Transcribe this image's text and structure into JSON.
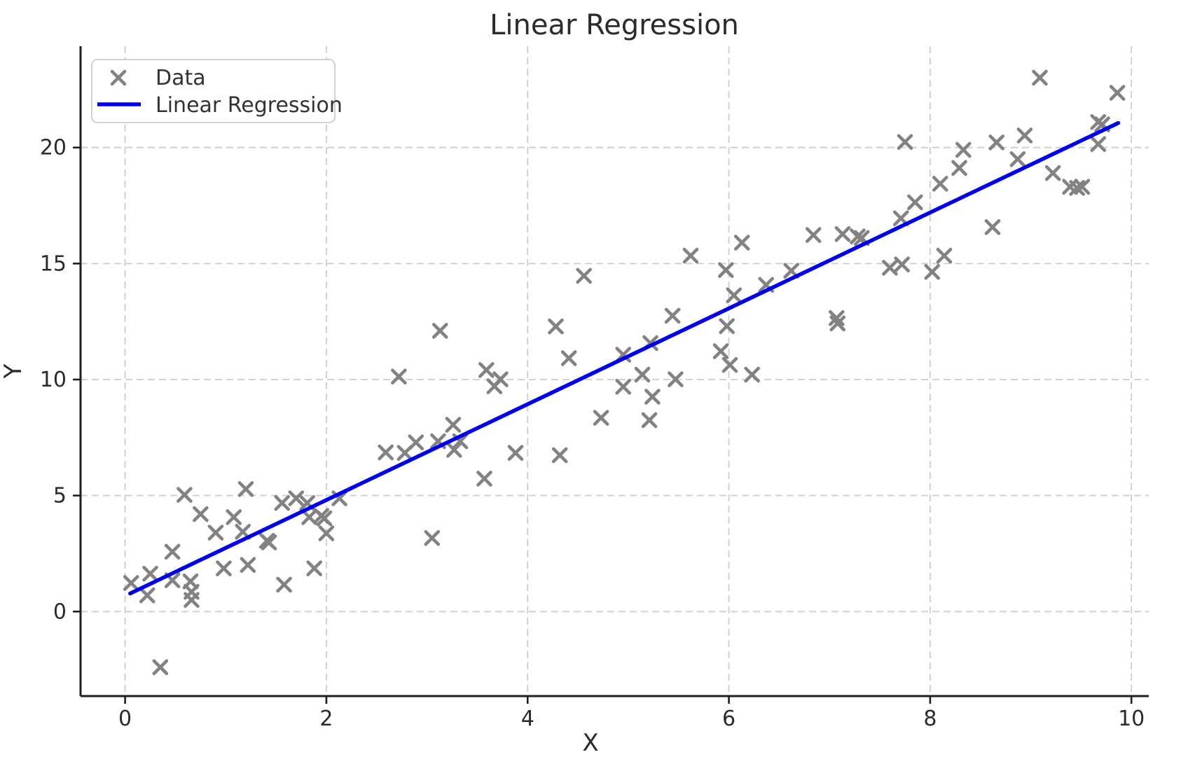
{
  "chart_data": {
    "type": "scatter",
    "title": "Linear Regression",
    "xlabel": "X",
    "ylabel": "Y",
    "x_ticks": [
      0,
      2,
      4,
      6,
      8,
      10
    ],
    "y_ticks": [
      0,
      5,
      10,
      15,
      20
    ],
    "xlim": [
      -0.45,
      10.17
    ],
    "ylim": [
      -3.6,
      24.4
    ],
    "grid": "dashed",
    "legend_position": "upper left",
    "legend": [
      {
        "label": "Data",
        "marker": "x",
        "color": "#828282"
      },
      {
        "label": "Linear Regression",
        "marker": "line",
        "color": "#0000ee"
      }
    ],
    "series": [
      {
        "name": "Data",
        "type": "scatter",
        "marker": "x",
        "color": "#828282",
        "points": [
          [
            0.06,
            1.23
          ],
          [
            0.22,
            0.7
          ],
          [
            0.25,
            1.63
          ],
          [
            0.35,
            -2.4
          ],
          [
            0.47,
            2.58
          ],
          [
            0.47,
            1.35
          ],
          [
            0.59,
            5.03
          ],
          [
            0.65,
            1.3
          ],
          [
            0.66,
            0.85
          ],
          [
            0.66,
            0.5
          ],
          [
            0.75,
            4.2
          ],
          [
            0.9,
            3.4
          ],
          [
            0.98,
            1.86
          ],
          [
            1.08,
            4.07
          ],
          [
            1.17,
            3.44
          ],
          [
            1.2,
            5.28
          ],
          [
            1.22,
            2.01
          ],
          [
            1.41,
            3.05
          ],
          [
            1.43,
            2.98
          ],
          [
            1.56,
            4.68
          ],
          [
            1.58,
            1.16
          ],
          [
            1.7,
            4.88
          ],
          [
            1.81,
            4.68
          ],
          [
            1.83,
            4.07
          ],
          [
            1.88,
            1.86
          ],
          [
            1.95,
            4.12
          ],
          [
            1.98,
            4.02
          ],
          [
            2.0,
            3.37
          ],
          [
            2.13,
            4.88
          ],
          [
            2.59,
            6.86
          ],
          [
            2.72,
            10.13
          ],
          [
            2.78,
            6.84
          ],
          [
            2.89,
            7.29
          ],
          [
            3.05,
            3.17
          ],
          [
            3.11,
            7.34
          ],
          [
            3.13,
            12.1
          ],
          [
            3.26,
            8.05
          ],
          [
            3.27,
            6.97
          ],
          [
            3.33,
            7.34
          ],
          [
            3.57,
            5.73
          ],
          [
            3.59,
            10.41
          ],
          [
            3.67,
            9.71
          ],
          [
            3.73,
            10.01
          ],
          [
            3.88,
            6.84
          ],
          [
            4.28,
            12.29
          ],
          [
            4.32,
            6.74
          ],
          [
            4.41,
            10.92
          ],
          [
            4.56,
            14.47
          ],
          [
            4.73,
            8.35
          ],
          [
            4.95,
            11.07
          ],
          [
            4.95,
            9.69
          ],
          [
            5.14,
            10.21
          ],
          [
            5.21,
            8.25
          ],
          [
            5.22,
            11.57
          ],
          [
            5.24,
            9.26
          ],
          [
            5.44,
            12.75
          ],
          [
            5.47,
            10.01
          ],
          [
            5.62,
            15.34
          ],
          [
            5.92,
            11.22
          ],
          [
            5.97,
            14.72
          ],
          [
            5.98,
            12.3
          ],
          [
            6.01,
            10.63
          ],
          [
            6.05,
            13.63
          ],
          [
            6.13,
            15.9
          ],
          [
            6.23,
            10.21
          ],
          [
            6.37,
            14.08
          ],
          [
            6.62,
            14.69
          ],
          [
            6.84,
            16.23
          ],
          [
            7.07,
            12.65
          ],
          [
            7.08,
            12.42
          ],
          [
            7.13,
            16.27
          ],
          [
            7.28,
            16.17
          ],
          [
            7.32,
            16.1
          ],
          [
            7.6,
            14.82
          ],
          [
            7.71,
            16.95
          ],
          [
            7.72,
            14.96
          ],
          [
            7.75,
            20.24
          ],
          [
            7.85,
            17.64
          ],
          [
            8.02,
            14.64
          ],
          [
            8.1,
            18.44
          ],
          [
            8.14,
            15.34
          ],
          [
            8.29,
            19.12
          ],
          [
            8.33,
            19.9
          ],
          [
            8.62,
            16.57
          ],
          [
            8.66,
            20.22
          ],
          [
            8.87,
            19.5
          ],
          [
            8.94,
            20.52
          ],
          [
            9.09,
            23.01
          ],
          [
            9.22,
            18.9
          ],
          [
            9.39,
            18.31
          ],
          [
            9.46,
            18.26
          ],
          [
            9.51,
            18.31
          ],
          [
            9.67,
            21.1
          ],
          [
            9.67,
            20.15
          ],
          [
            9.71,
            21.0
          ],
          [
            9.86,
            22.36
          ]
        ]
      },
      {
        "name": "Linear Regression",
        "type": "line",
        "color": "#0000ee",
        "endpoints": [
          [
            0.05,
            0.78
          ],
          [
            9.87,
            21.06
          ]
        ]
      }
    ],
    "colors": {
      "marker": "#828282",
      "line": "#0000ee",
      "grid": "#cdcdcd",
      "spine": "#1f1f1f",
      "text": "#2b2b2b",
      "legend_border": "#cccccc",
      "background": "#ffffff"
    }
  }
}
